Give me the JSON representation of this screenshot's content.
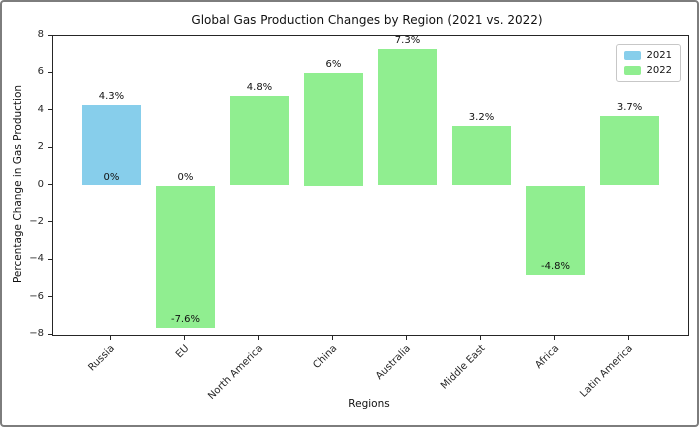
{
  "chart_data": {
    "type": "bar",
    "title": "Global Gas Production Changes by Region (2021 vs. 2022)",
    "xlabel": "Regions",
    "ylabel": "Percentage Change in Gas Production",
    "categories": [
      "Russia",
      "EU",
      "North America",
      "China",
      "Australia",
      "Middle East",
      "Africa",
      "Latin America"
    ],
    "series": [
      {
        "name": "2021",
        "color": "#87CEEB",
        "values": [
          4.3,
          0,
          null,
          null,
          null,
          null,
          null,
          null
        ],
        "value_labels": [
          "4.3%",
          "0%",
          null,
          null,
          null,
          null,
          null,
          null
        ]
      },
      {
        "name": "2022",
        "color": "#90EE90",
        "values": [
          0,
          -7.6,
          4.8,
          6,
          7.3,
          3.2,
          -4.8,
          3.7
        ],
        "value_labels": [
          "0%",
          "-7.6%",
          "4.8%",
          "6%",
          "7.3%",
          "3.2%",
          "-4.8%",
          "3.7%"
        ]
      }
    ],
    "ylim": [
      -8,
      8
    ],
    "yticks": [
      8,
      6,
      4,
      2,
      0,
      -2,
      -4,
      -6,
      -8
    ],
    "ytick_labels": [
      "8",
      "6",
      "4",
      "2",
      "0",
      "−2",
      "−4",
      "−6",
      "−8"
    ],
    "xlim": [
      -0.79,
      7.79
    ],
    "bar_width": 0.8,
    "grid": false,
    "legend": {
      "position": "upper right",
      "entries": [
        {
          "label": "2021",
          "color": "#87CEEB"
        },
        {
          "label": "2022",
          "color": "#90EE90"
        }
      ]
    }
  }
}
